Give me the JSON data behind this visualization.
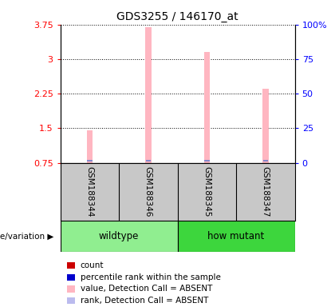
{
  "title": "GDS3255 / 146170_at",
  "samples": [
    "GSM188344",
    "GSM188346",
    "GSM188345",
    "GSM188347"
  ],
  "pink_bar_values": [
    1.45,
    3.7,
    3.15,
    2.35
  ],
  "blue_marker_values": [
    0.775,
    0.785,
    0.785,
    0.775
  ],
  "ylim_left": [
    0.75,
    3.75
  ],
  "ylim_right": [
    0,
    100
  ],
  "left_yticks": [
    0.75,
    1.5,
    2.25,
    3.0,
    3.75
  ],
  "right_yticks": [
    0,
    25,
    50,
    75,
    100
  ],
  "left_ytick_labels": [
    "0.75",
    "1.5",
    "2.25",
    "3",
    "3.75"
  ],
  "right_ytick_labels": [
    "0",
    "25",
    "50",
    "75",
    "100%"
  ],
  "groups": [
    {
      "label": "wildtype",
      "samples": [
        0,
        1
      ],
      "color": "#90EE90"
    },
    {
      "label": "how mutant",
      "samples": [
        2,
        3
      ],
      "color": "#3DD63D"
    }
  ],
  "pink_color": "#FFB6C1",
  "blue_color": "#8888CC",
  "bar_width": 0.1,
  "sample_area_bg": "#C8C8C8",
  "chart_bg": "#FFFFFF",
  "legend_items": [
    {
      "color": "#CC0000",
      "label": "count"
    },
    {
      "color": "#0000CC",
      "label": "percentile rank within the sample"
    },
    {
      "color": "#FFB6C1",
      "label": "value, Detection Call = ABSENT"
    },
    {
      "color": "#BBBBEE",
      "label": "rank, Detection Call = ABSENT"
    }
  ],
  "title_fontsize": 10,
  "tick_fontsize": 8,
  "sample_fontsize": 7.5,
  "legend_fontsize": 7.5
}
